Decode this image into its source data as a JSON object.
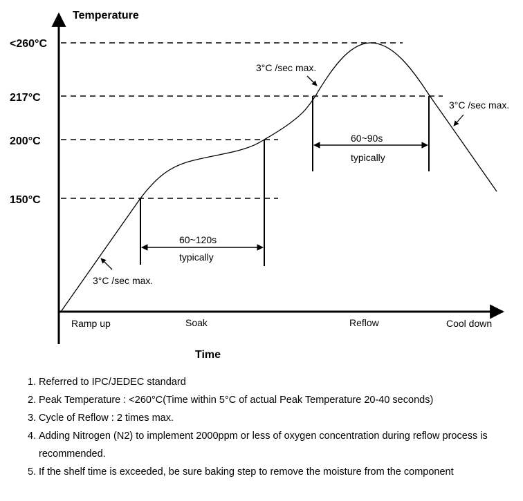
{
  "diagram": {
    "title_y": "Temperature",
    "title_x": "Time",
    "temp_labels": [
      "<260°C",
      "217°C",
      "200°C",
      "150°C"
    ],
    "phases": [
      "Ramp up",
      "Soak",
      "Reflow",
      "Cool down"
    ],
    "soak_duration": "60~120s",
    "soak_note": "typically",
    "reflow_duration": "60~90s",
    "reflow_note": "typically",
    "ramp_up_rate": "3°C /sec max.",
    "peak_rise_rate": "3°C /sec max.",
    "cool_down_rate": "3°C /sec max."
  },
  "notes": [
    {
      "num": "1.",
      "text": "Referred to IPC/JEDEC standard"
    },
    {
      "num": "2.",
      "text": "Peak Temperature : <260°C(Time within 5°C of actual Peak Temperature 20-40 seconds)"
    },
    {
      "num": "3.",
      "text": "Cycle of Reflow : 2 times max."
    },
    {
      "num": "4.",
      "text": "Adding Nitrogen (N2) to implement 2000ppm or less of oxygen concentration during reflow process is recommended."
    },
    {
      "num": "5.",
      "text": "If the shelf time is exceeded, be sure baking step to remove the moisture from the component"
    }
  ]
}
